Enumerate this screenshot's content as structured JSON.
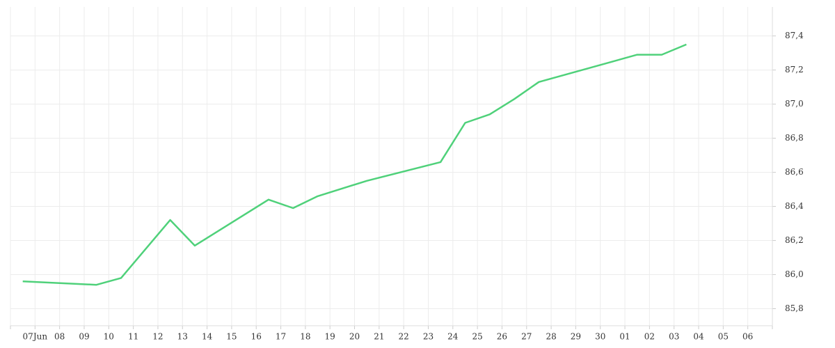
{
  "chart_data": {
    "type": "line",
    "categories": [
      null,
      "07Jun",
      "08",
      "09",
      "10",
      "11",
      "12",
      "13",
      "14",
      "15",
      "16",
      "17",
      "18",
      "19",
      "20",
      "21",
      "22",
      "23",
      "24",
      "25",
      "26",
      "27",
      "28",
      "29",
      "30",
      "01",
      "02",
      "03",
      "04",
      "05",
      "06"
    ],
    "series": [
      {
        "color": "#4fd17a",
        "x": [
          null,
          "09",
          "10",
          "12",
          "13",
          "16",
          "17",
          "18",
          "20",
          "23",
          "24",
          "25",
          "26",
          "27",
          "30",
          "01",
          "02",
          "03"
        ],
        "values": [
          85.96,
          85.94,
          85.98,
          86.32,
          86.17,
          86.44,
          86.39,
          86.46,
          86.55,
          86.66,
          86.89,
          86.94,
          87.03,
          87.13,
          87.25,
          87.29,
          87.29,
          87.35
        ]
      }
    ],
    "ylim": [
      85.7,
      87.57
    ],
    "yticks": [
      {
        "value": 85.8,
        "label": "85,8"
      },
      {
        "value": 86.0,
        "label": "86,0"
      },
      {
        "value": 86.2,
        "label": "86,2"
      },
      {
        "value": 86.4,
        "label": "86,4"
      },
      {
        "value": 86.6,
        "label": "86,6"
      },
      {
        "value": 86.8,
        "label": "86,8"
      },
      {
        "value": 87.0,
        "label": "87,0"
      },
      {
        "value": 87.2,
        "label": "87,2"
      },
      {
        "value": 87.4,
        "label": "87,4"
      }
    ],
    "grid": true
  }
}
